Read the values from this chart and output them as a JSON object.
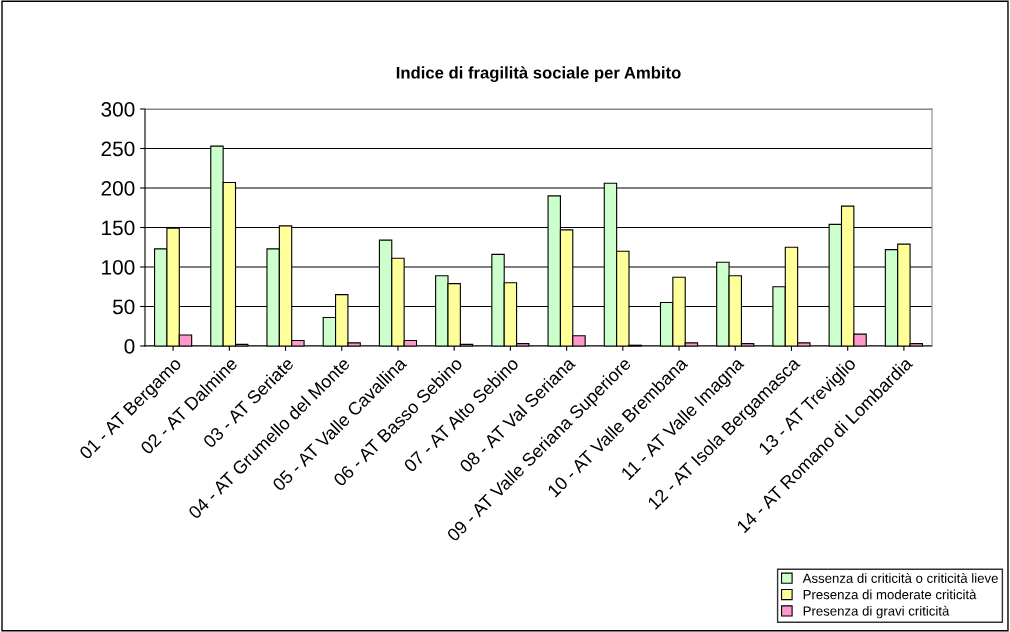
{
  "chart_data": {
    "type": "bar",
    "title": "Indice di fragilità sociale per Ambito",
    "categories": [
      "01 - AT Bergamo",
      "02 - AT Dalmine",
      "03 - AT Seriate",
      "04 - AT Grumello del Monte",
      "05 - AT Valle Cavallina",
      "06 - AT Basso Sebino",
      "07 - AT Alto Sebino",
      "08 - AT Val Seriana",
      "09 - AT Valle Seriana Superiore",
      "10 - AT Valle Brembana",
      "11 - AT Valle Imagna",
      "12 - AT Isola Bergamasca",
      "13 - AT Treviglio",
      "14 - AT Romano di Lombardia"
    ],
    "series": [
      {
        "name": "Assenza di criticità o criticità lieve",
        "color": "#ccffcc",
        "values": [
          123,
          253,
          123,
          36,
          134,
          89,
          116,
          190,
          206,
          55,
          106,
          75,
          154,
          122
        ]
      },
      {
        "name": "Presenza di moderate criticità",
        "color": "#ffff99",
        "values": [
          149,
          207,
          152,
          65,
          111,
          79,
          80,
          147,
          120,
          87,
          89,
          125,
          177,
          129
        ]
      },
      {
        "name": "Presenza di gravi criticità",
        "color": "#ff99cc",
        "values": [
          14,
          2,
          7,
          4,
          7,
          2,
          3,
          13,
          1,
          4,
          3,
          4,
          15,
          3
        ]
      }
    ],
    "ylim": [
      0,
      300
    ],
    "yticks": [
      0,
      50,
      100,
      150,
      200,
      250,
      300
    ],
    "grid": "y",
    "legend": "bottom right"
  }
}
